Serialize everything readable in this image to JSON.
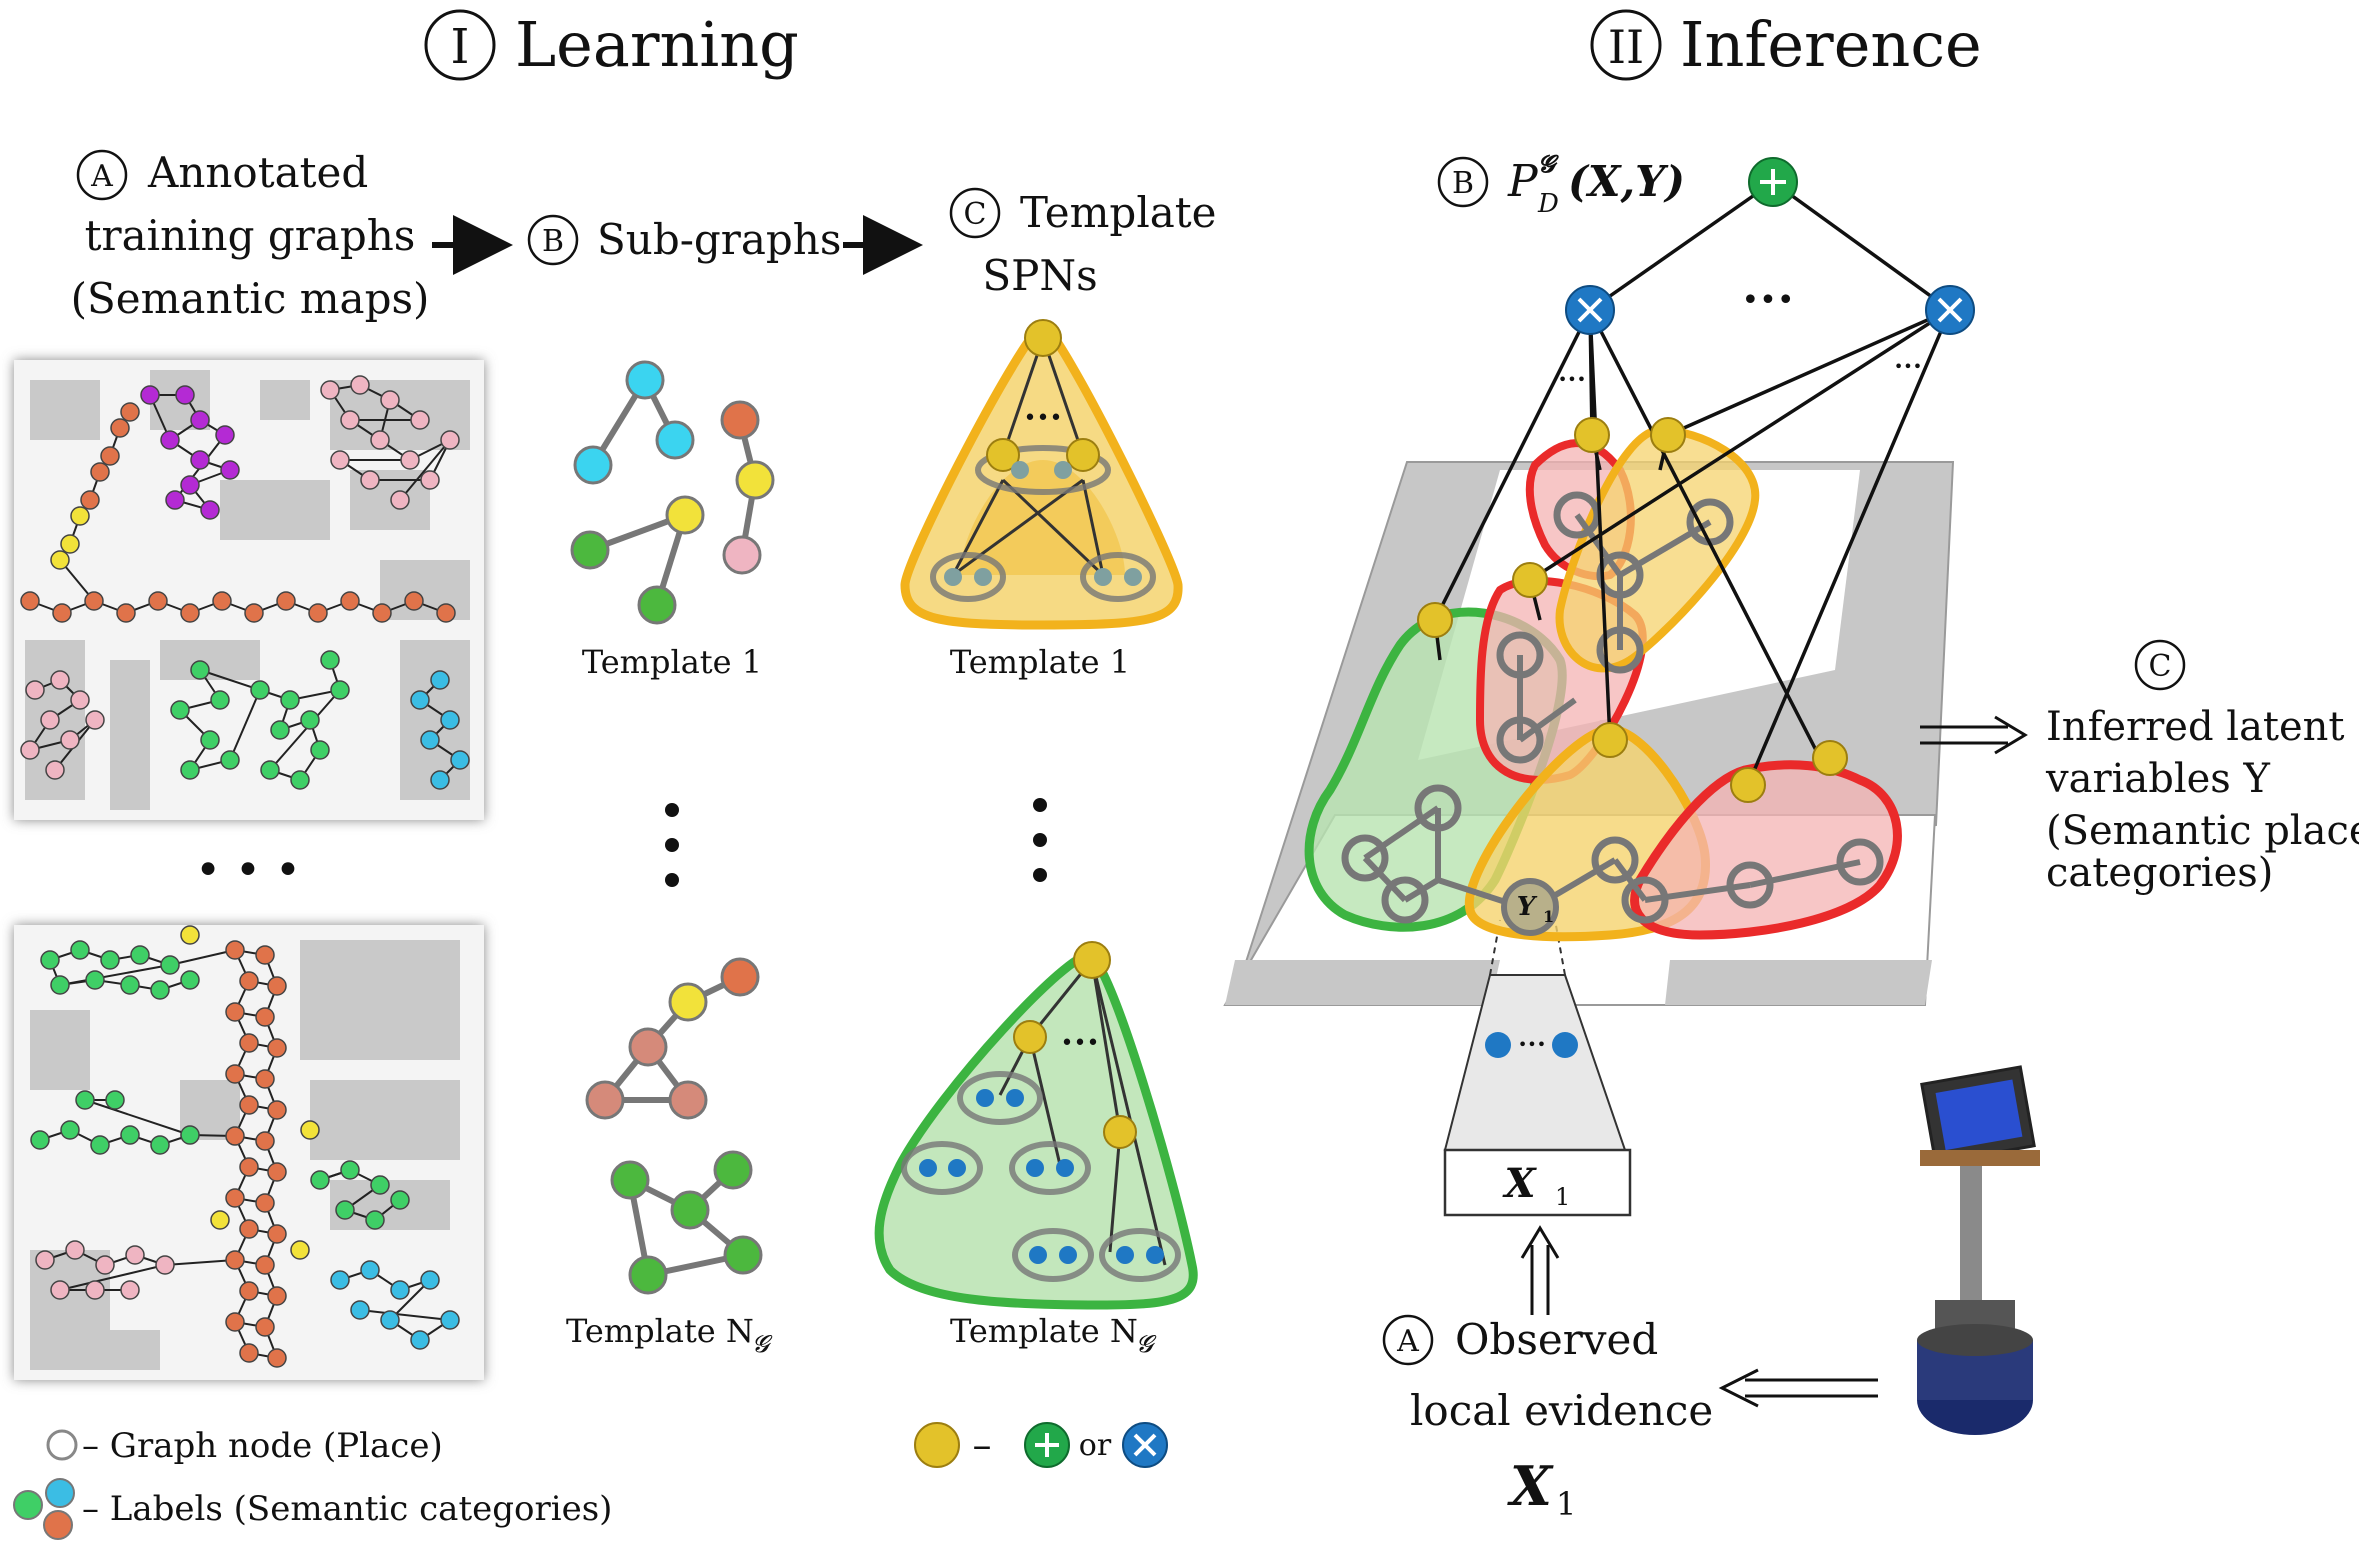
{
  "sections": {
    "learning": {
      "numeral": "I",
      "title": "Learning"
    },
    "inference": {
      "numeral": "II",
      "title": "Inference"
    }
  },
  "learning": {
    "step_a": {
      "badge": "A",
      "lines": [
        "Annotated",
        "training graphs",
        "(Semantic maps)"
      ]
    },
    "step_b": {
      "badge": "B",
      "label": "Sub-graphs"
    },
    "step_c": {
      "badge": "C",
      "lines": [
        "Template",
        "SPNs"
      ]
    },
    "subgraph_labels": {
      "first": "Template 1",
      "last_prefix": "Template N",
      "last_sub": "𝓖"
    },
    "template_labels": {
      "first": "Template 1",
      "last_prefix": "Template N",
      "last_sub": "𝓖"
    },
    "dots": "• • •"
  },
  "legend": {
    "graph_node": "– Graph node (Place)",
    "labels": "– Labels (Semantic categories)",
    "spn_key_dash": "–",
    "spn_key_or": "or"
  },
  "inference": {
    "step_b": {
      "badge": "B",
      "formula_base": "P",
      "formula_sup": "𝓖",
      "formula_sub": "D",
      "formula_args": "(X,Y)"
    },
    "step_c": {
      "badge": "C",
      "lines": [
        "Inferred latent",
        "variables Y",
        "(Semantic place",
        "categories)"
      ]
    },
    "step_a": {
      "badge": "A",
      "lines": [
        "Observed",
        "local evidence"
      ],
      "var": "X",
      "var_sub": "1"
    },
    "evidence_box": {
      "var": "X",
      "var_sub": "1"
    },
    "latent_node": {
      "var": "Y",
      "var_sub": "1"
    }
  },
  "colors": {
    "sum_node": "#22a84a",
    "product_node": "#1f78c4",
    "leaf_node": "#e3c22a",
    "template_yellow": "#f2b21c",
    "template_green": "#3cb441",
    "template_red": "#ea2a2a",
    "corridor": "#e0734a",
    "room_pink": "#efb5c2",
    "office_green": "#3fcf66",
    "lab_cyan": "#3bbde4",
    "purple": "#b42ad4",
    "doorway": "#f2e23a"
  }
}
